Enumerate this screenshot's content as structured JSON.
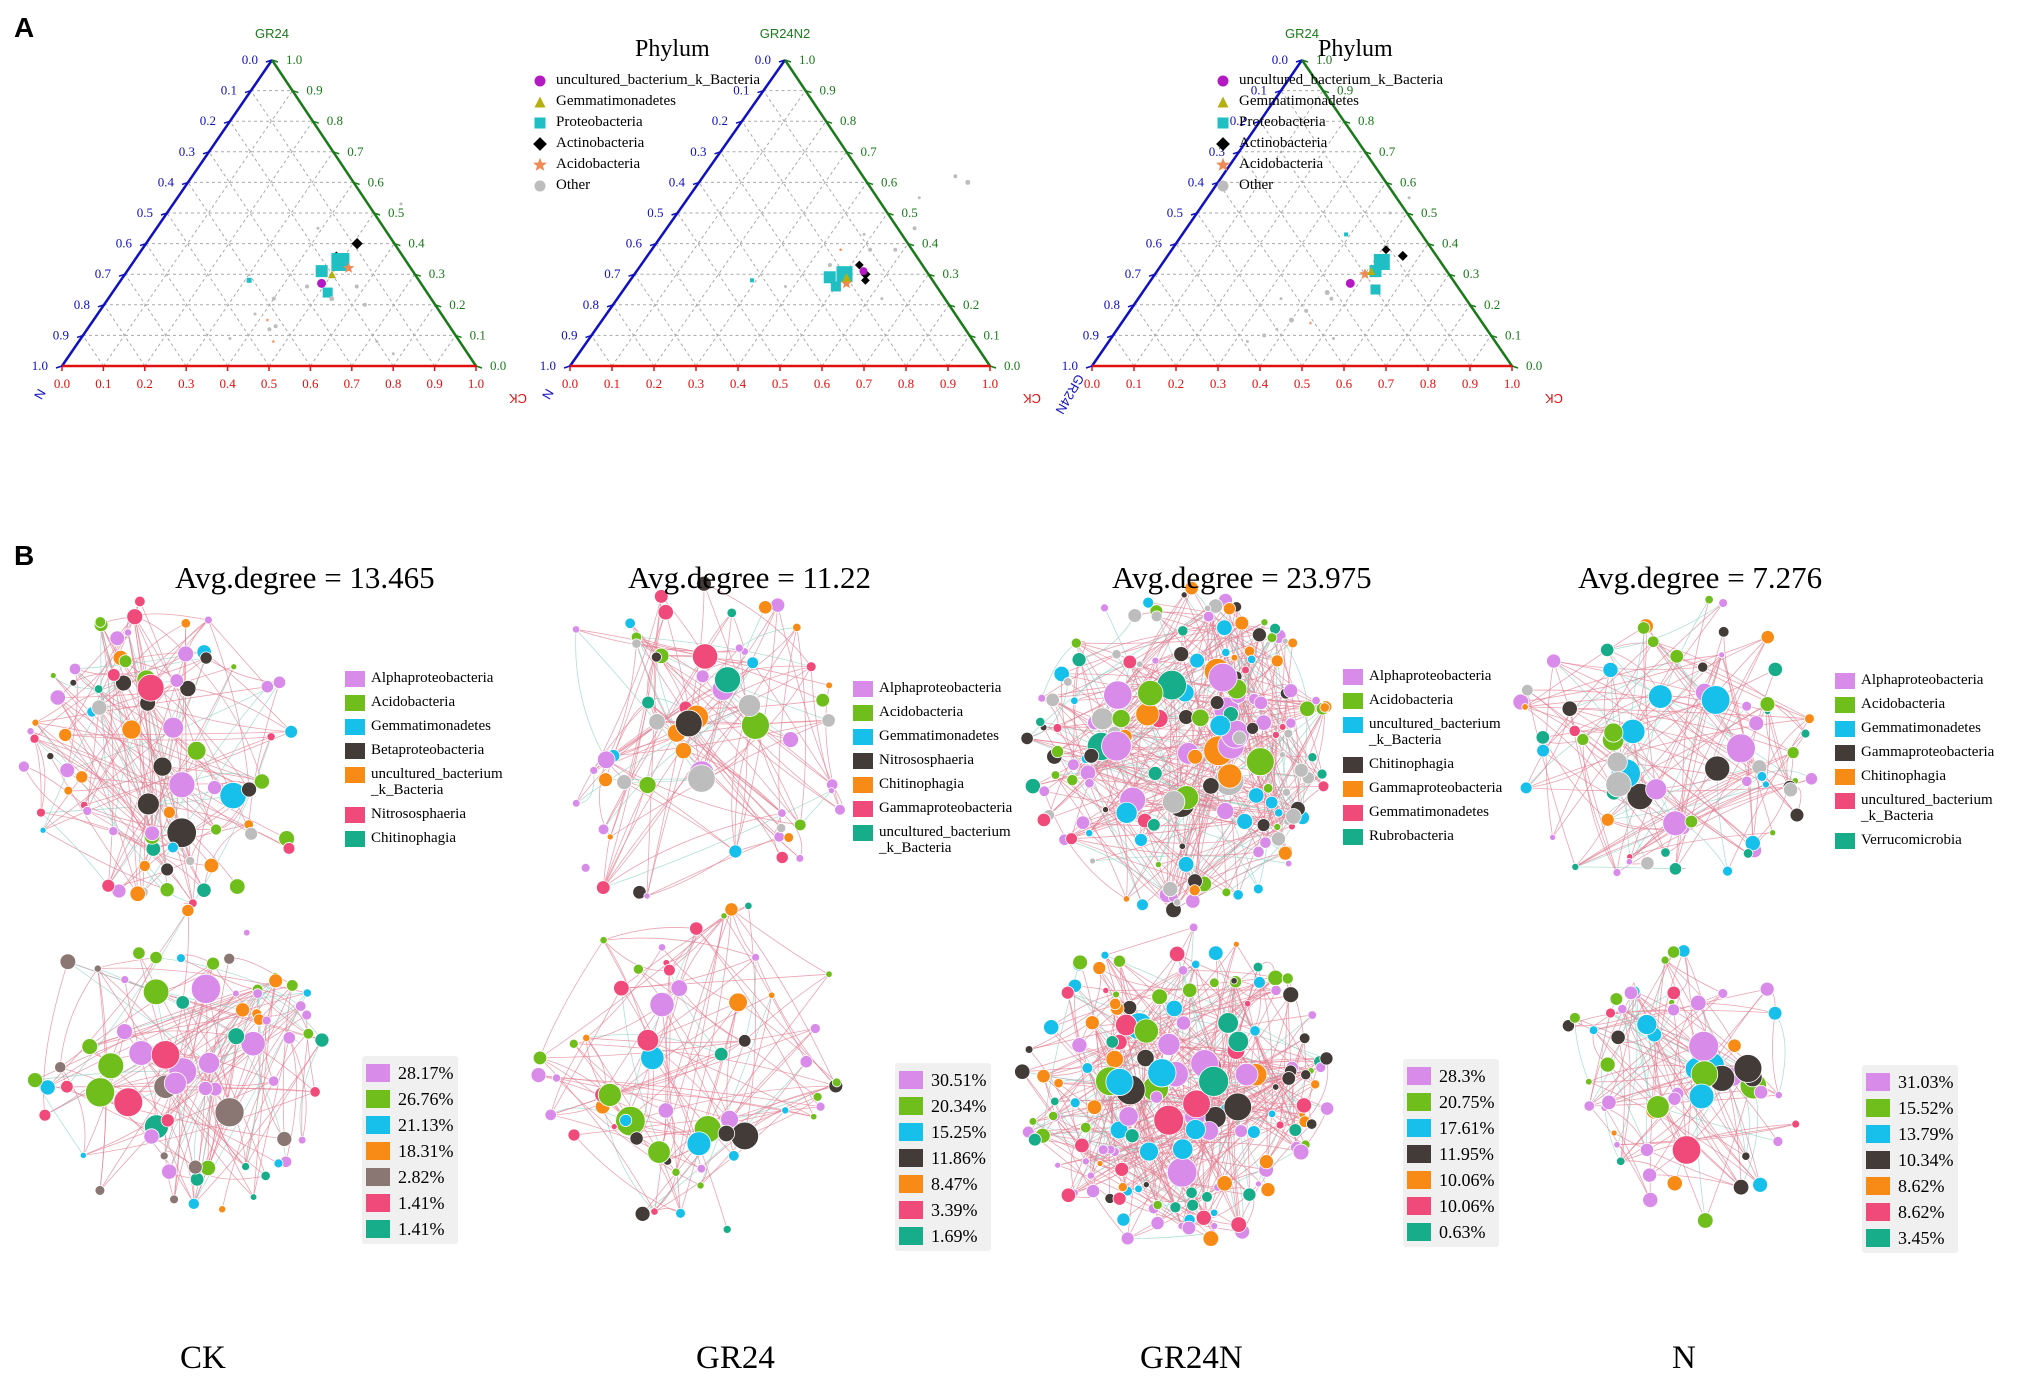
{
  "panel_labels": {
    "a": "A",
    "b": "B"
  },
  "ternary": {
    "legend_title": "Phylum",
    "legend_items": [
      {
        "label": "uncultured_bacterium_k_Bacteria",
        "color": "#b519c4",
        "shape": "circle"
      },
      {
        "label": "Gemmatimonadetes",
        "color": "#b5b00f",
        "shape": "triangle"
      },
      {
        "label": "Proteobacteria",
        "color": "#1fbfc4",
        "shape": "square"
      },
      {
        "label": "Actinobacteria",
        "color": "#000000",
        "shape": "diamond"
      },
      {
        "label": "Acidobacteria",
        "color": "#f08a55",
        "shape": "star"
      },
      {
        "label": "Other",
        "color": "#bdbdbd",
        "shape": "circle"
      }
    ],
    "tick_labels": [
      "0.0",
      "0.1",
      "0.2",
      "0.3",
      "0.4",
      "0.5",
      "0.6",
      "0.7",
      "0.8",
      "0.9",
      "1.0"
    ],
    "plots": [
      {
        "top": "GR24",
        "left": "N",
        "right": "CK"
      },
      {
        "top": "GR24N2",
        "left": "N",
        "right": "CK"
      },
      {
        "top": "GR24",
        "left": "GR24N",
        "right": "CK"
      }
    ],
    "axis_colors": {
      "left": "#1010c0",
      "right": "#1a7a1a",
      "bottom": "#e01010"
    }
  },
  "networks": [
    {
      "sample": "CK",
      "avg_degree": "Avg.degree = 13.465",
      "legend": [
        {
          "label": "Alphaproteobacteria",
          "color": "#d98bea"
        },
        {
          "label": "Acidobacteria",
          "color": "#6fbe1c"
        },
        {
          "label": "Gemmatimonadetes",
          "color": "#16c0ea"
        },
        {
          "label": "Betaproteobacteria",
          "color": "#423b38"
        },
        {
          "label": "uncultured_bacterium\n_k_Bacteria",
          "color": "#f78b15"
        },
        {
          "label": "Nitrososphaeria",
          "color": "#ef4a7a"
        },
        {
          "label": "Chitinophagia",
          "color": "#18ad8a"
        }
      ],
      "percentages": [
        {
          "label": "28.17%",
          "color": "#d98bea"
        },
        {
          "label": "26.76%",
          "color": "#6fbe1c"
        },
        {
          "label": "21.13%",
          "color": "#16c0ea"
        },
        {
          "label": "18.31%",
          "color": "#f78b15"
        },
        {
          "label": "2.82%",
          "color": "#8a7774"
        },
        {
          "label": "1.41%",
          "color": "#ef4a7a"
        },
        {
          "label": "1.41%",
          "color": "#18ad8a"
        }
      ]
    },
    {
      "sample": "GR24",
      "avg_degree": "Avg.degree = 11.22",
      "legend": [
        {
          "label": "Alphaproteobacteria",
          "color": "#d98bea"
        },
        {
          "label": "Acidobacteria",
          "color": "#6fbe1c"
        },
        {
          "label": "Gemmatimonadetes",
          "color": "#16c0ea"
        },
        {
          "label": "Nitrososphaeria",
          "color": "#423b38"
        },
        {
          "label": "Chitinophagia",
          "color": "#f78b15"
        },
        {
          "label": "Gammaproteobacteria",
          "color": "#ef4a7a"
        },
        {
          "label": "uncultured_bacterium\n_k_Bacteria",
          "color": "#18ad8a"
        }
      ],
      "percentages": [
        {
          "label": "30.51%",
          "color": "#d98bea"
        },
        {
          "label": "20.34%",
          "color": "#6fbe1c"
        },
        {
          "label": "15.25%",
          "color": "#16c0ea"
        },
        {
          "label": "11.86%",
          "color": "#423b38"
        },
        {
          "label": "8.47%",
          "color": "#f78b15"
        },
        {
          "label": "3.39%",
          "color": "#ef4a7a"
        },
        {
          "label": "1.69%",
          "color": "#18ad8a"
        }
      ]
    },
    {
      "sample": "GR24N",
      "avg_degree": "Avg.degree = 23.975",
      "legend": [
        {
          "label": "Alphaproteobacteria",
          "color": "#d98bea"
        },
        {
          "label": "Acidobacteria",
          "color": "#6fbe1c"
        },
        {
          "label": "uncultured_bacterium\n_k_Bacteria",
          "color": "#16c0ea"
        },
        {
          "label": "Chitinophagia",
          "color": "#423b38"
        },
        {
          "label": "Gammaproteobacteria",
          "color": "#f78b15"
        },
        {
          "label": "Gemmatimonadetes",
          "color": "#ef4a7a"
        },
        {
          "label": "Rubrobacteria",
          "color": "#18ad8a"
        }
      ],
      "percentages": [
        {
          "label": "28.3%",
          "color": "#d98bea"
        },
        {
          "label": "20.75%",
          "color": "#6fbe1c"
        },
        {
          "label": "17.61%",
          "color": "#16c0ea"
        },
        {
          "label": "11.95%",
          "color": "#423b38"
        },
        {
          "label": "10.06%",
          "color": "#f78b15"
        },
        {
          "label": "10.06%",
          "color": "#ef4a7a"
        },
        {
          "label": "0.63%",
          "color": "#18ad8a"
        }
      ]
    },
    {
      "sample": "N",
      "avg_degree": "Avg.degree = 7.276",
      "legend": [
        {
          "label": "Alphaproteobacteria",
          "color": "#d98bea"
        },
        {
          "label": "Acidobacteria",
          "color": "#6fbe1c"
        },
        {
          "label": "Gemmatimonadetes",
          "color": "#16c0ea"
        },
        {
          "label": "Gammaproteobacteria",
          "color": "#423b38"
        },
        {
          "label": "Chitinophagia",
          "color": "#f78b15"
        },
        {
          "label": "uncultured_bacterium\n_k_Bacteria",
          "color": "#ef4a7a"
        },
        {
          "label": "Verrucomicrobia",
          "color": "#18ad8a"
        }
      ],
      "percentages": [
        {
          "label": "31.03%",
          "color": "#d98bea"
        },
        {
          "label": "15.52%",
          "color": "#6fbe1c"
        },
        {
          "label": "13.79%",
          "color": "#16c0ea"
        },
        {
          "label": "10.34%",
          "color": "#423b38"
        },
        {
          "label": "8.62%",
          "color": "#f78b15"
        },
        {
          "label": "8.62%",
          "color": "#ef4a7a"
        },
        {
          "label": "3.45%",
          "color": "#18ad8a"
        }
      ]
    }
  ]
}
